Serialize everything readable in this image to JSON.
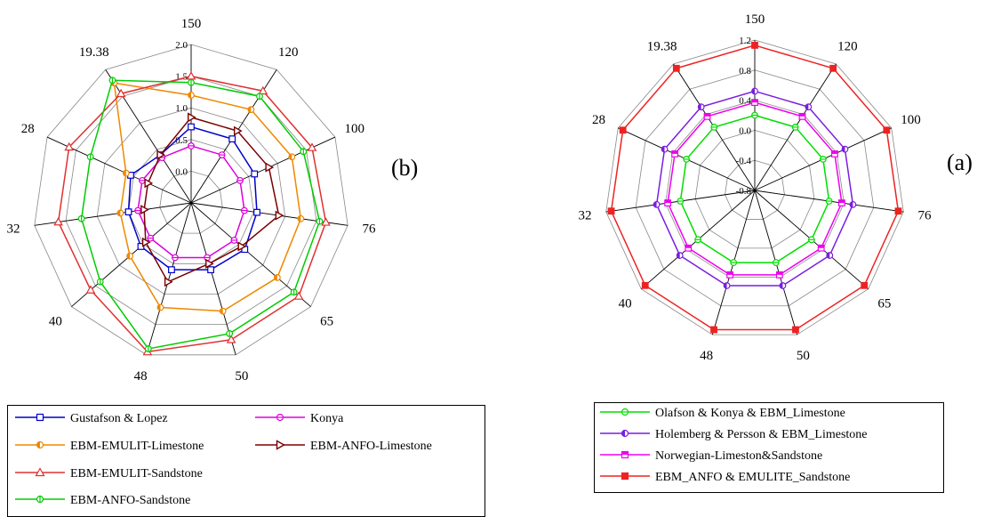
{
  "chart_data": [
    {
      "type": "radar",
      "panel_label": "(b)",
      "categories": [
        "150",
        "120",
        "100",
        "76",
        "65",
        "50",
        "48",
        "40",
        "32",
        "28",
        "19.38"
      ],
      "ylim": [
        -0.5,
        2.0
      ],
      "ticks": [
        "0.0",
        "0.5",
        "1.0",
        "1.5",
        "2.0"
      ],
      "tick_values": [
        0.0,
        0.5,
        1.0,
        1.5,
        2.0
      ],
      "legend_placement": "bottom",
      "series": [
        {
          "name": "Gustafson & Lopez",
          "color": "#0000cc",
          "marker": "square",
          "values": [
            0.7,
            0.7,
            0.6,
            0.55,
            0.62,
            0.6,
            0.6,
            0.55,
            0.5,
            0.55,
            0.4
          ]
        },
        {
          "name": "Konya",
          "color": "#dd00dd",
          "marker": "circle",
          "values": [
            0.4,
            0.4,
            0.35,
            0.35,
            0.4,
            0.4,
            0.4,
            0.35,
            0.35,
            0.35,
            0.35
          ]
        },
        {
          "name": "EBM-EMULIT-Limestone",
          "color": "#ee8800",
          "marker": "half-circle",
          "values": [
            1.2,
            1.25,
            1.25,
            1.25,
            1.3,
            1.28,
            1.22,
            0.78,
            0.63,
            0.63,
            1.75
          ]
        },
        {
          "name": "EBM-ANFO-Limestone",
          "color": "#7a0000",
          "marker": "triangle-right",
          "values": [
            0.85,
            0.85,
            0.85,
            0.9,
            0.55,
            0.5,
            0.8,
            0.45,
            0.25,
            0.25,
            0.4
          ]
        },
        {
          "name": "EBM-EMULIT-Sandstone",
          "color": "#e03030",
          "marker": "triangle-up",
          "values": [
            1.5,
            1.6,
            1.6,
            1.65,
            1.75,
            1.75,
            1.95,
            1.6,
            1.62,
            1.62,
            1.55
          ]
        },
        {
          "name": "EBM-ANFO-Sandstone",
          "color": "#00cc00",
          "marker": "circle-bar",
          "values": [
            1.4,
            1.5,
            1.45,
            1.55,
            1.65,
            1.65,
            1.9,
            1.4,
            1.25,
            1.25,
            1.8
          ]
        }
      ]
    },
    {
      "type": "radar",
      "panel_label": "(a)",
      "categories": [
        "150",
        "120",
        "100",
        "76",
        "65",
        "50",
        "48",
        "40",
        "32",
        "28",
        "19.38"
      ],
      "ylim": [
        -0.8,
        1.2
      ],
      "ticks": [
        "-0.8",
        "-0.4",
        "0.0",
        "0.4",
        "0.8",
        "1.2"
      ],
      "tick_values": [
        -0.8,
        -0.4,
        0.0,
        0.4,
        0.8,
        1.2
      ],
      "legend_placement": "bottom",
      "series": [
        {
          "name": "Olafson & Konya & EBM_Limestone",
          "color": "#00dd00",
          "marker": "circle",
          "values": [
            0.2,
            0.2,
            0.2,
            0.2,
            0.2,
            0.2,
            0.2,
            0.2,
            0.2,
            0.2,
            0.2
          ]
        },
        {
          "name": "Holemberg & Persson & EBM_Limestone",
          "color": "#7a1ee0",
          "marker": "half-circle",
          "values": [
            0.52,
            0.52,
            0.52,
            0.52,
            0.52,
            0.52,
            0.52,
            0.52,
            0.52,
            0.52,
            0.52
          ]
        },
        {
          "name": "Norwegian-Limeston&Sandstone",
          "color": "#ee00ee",
          "marker": "half-square",
          "values": [
            0.37,
            0.37,
            0.37,
            0.37,
            0.37,
            0.37,
            0.37,
            0.37,
            0.37,
            0.37,
            0.37
          ]
        },
        {
          "name": "EBM_ANFO & EMULITE_Sandstone",
          "color": "#ee2222",
          "marker": "square-filled",
          "values": [
            1.13,
            1.13,
            1.13,
            1.13,
            1.13,
            1.13,
            1.13,
            1.13,
            1.13,
            1.13,
            1.13
          ]
        }
      ]
    }
  ]
}
